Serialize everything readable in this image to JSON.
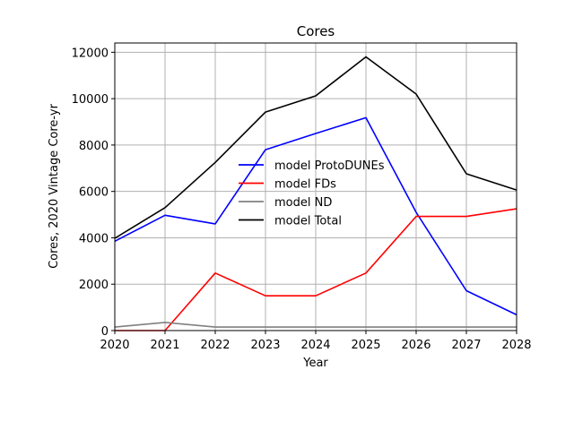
{
  "chart_data": {
    "type": "line",
    "title": "Cores",
    "xlabel": "Year",
    "ylabel": "Cores, 2020 Vintage Core-yr",
    "x": [
      2020,
      2021,
      2022,
      2023,
      2024,
      2025,
      2026,
      2027,
      2028
    ],
    "xlim": [
      2020,
      2028
    ],
    "ylim": [
      0,
      12400
    ],
    "xticks": [
      2020,
      2021,
      2022,
      2023,
      2024,
      2025,
      2026,
      2027,
      2028
    ],
    "yticks": [
      0,
      2000,
      4000,
      6000,
      8000,
      10000,
      12000
    ],
    "grid": true,
    "legend_position": "center",
    "series": [
      {
        "name": "model ProtoDUNEs",
        "color": "#0000ff",
        "values": [
          3850,
          4970,
          4600,
          7800,
          8500,
          9180,
          5100,
          1720,
          680
        ]
      },
      {
        "name": "model FDs",
        "color": "#ff0000",
        "values": [
          0,
          0,
          2480,
          1500,
          1500,
          2480,
          4920,
          4920,
          5250
        ]
      },
      {
        "name": "model ND",
        "color": "#808080",
        "values": [
          150,
          350,
          150,
          150,
          150,
          150,
          150,
          150,
          150
        ]
      },
      {
        "name": "model Total",
        "color": "#000000",
        "values": [
          3980,
          5300,
          7250,
          9420,
          10120,
          11800,
          10200,
          6760,
          6060
        ]
      }
    ]
  }
}
